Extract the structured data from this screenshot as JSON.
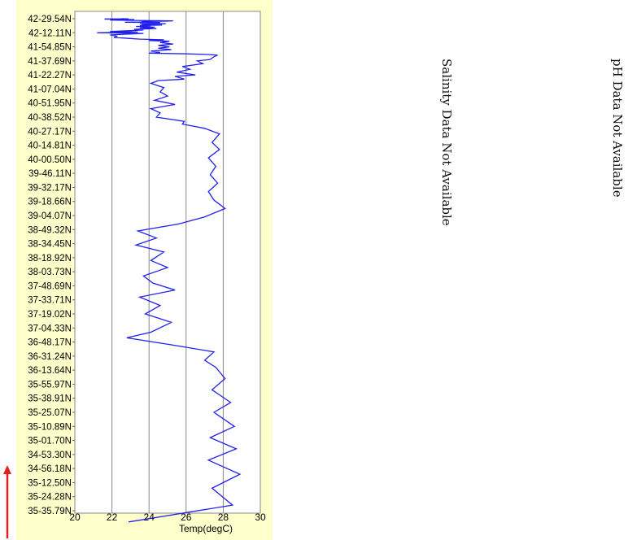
{
  "chart_data": {
    "type": "line",
    "orientation": "vertical-track",
    "xlabel": "Temp(degC)",
    "xlim": [
      20,
      30
    ],
    "xticks": [
      "20",
      "22",
      "24",
      "26",
      "28",
      "30"
    ],
    "y_tick_labels": [
      "42-29.54N",
      "42-12.11N",
      "41-54.85N",
      "41-37.69N",
      "41-22.27N",
      "41-07.04N",
      "40-51.95N",
      "40-38.52N",
      "40-27.17N",
      "40-14.81N",
      "40-00.50N",
      "39-46.11N",
      "39-32.17N",
      "39-18.66N",
      "39-04.07N",
      "38-49.32N",
      "38-34.45N",
      "38-18.92N",
      "38-03.73N",
      "37-48.69N",
      "37-33.71N",
      "37-19.02N",
      "37-04.33N",
      "36-48.17N",
      "36-31.24N",
      "36-13.64N",
      "35-55.97N",
      "35-38.91N",
      "35-25.07N",
      "35-10.89N",
      "35-01.70N",
      "34-53.30N",
      "34-56.18N",
      "35-12.50N",
      "35-24.28N",
      "35-35.79N"
    ],
    "series": [
      {
        "color": "#2020ee",
        "points": [
          [
            22.9,
            35.8
          ],
          [
            28.5,
            34.6
          ],
          [
            27.4,
            33.4
          ],
          [
            28.9,
            32.4
          ],
          [
            27.2,
            31.4
          ],
          [
            28.7,
            30.6
          ],
          [
            27.3,
            29.8
          ],
          [
            28.6,
            29.0
          ],
          [
            27.5,
            28.0
          ],
          [
            28.4,
            27.3
          ],
          [
            27.4,
            26.4
          ],
          [
            28.1,
            25.6
          ],
          [
            27.6,
            24.8
          ],
          [
            27.0,
            24.3
          ],
          [
            27.5,
            23.7
          ],
          [
            25.2,
            23.2
          ],
          [
            22.8,
            22.7
          ],
          [
            24.1,
            22.3
          ],
          [
            25.2,
            21.6
          ],
          [
            23.8,
            21.0
          ],
          [
            24.6,
            20.4
          ],
          [
            23.5,
            19.8
          ],
          [
            25.4,
            19.3
          ],
          [
            24.2,
            18.8
          ],
          [
            23.7,
            18.3
          ],
          [
            25.0,
            17.7
          ],
          [
            24.1,
            17.2
          ],
          [
            24.8,
            16.6
          ],
          [
            23.3,
            16.1
          ],
          [
            24.4,
            15.6
          ],
          [
            23.4,
            15.1
          ],
          [
            25.6,
            14.6
          ],
          [
            27.0,
            14.1
          ],
          [
            28.1,
            13.5
          ],
          [
            27.5,
            12.9
          ],
          [
            27.2,
            12.3
          ],
          [
            27.7,
            11.7
          ],
          [
            27.3,
            11.1
          ],
          [
            27.6,
            10.5
          ],
          [
            27.2,
            9.9
          ],
          [
            27.8,
            9.3
          ],
          [
            27.4,
            8.8
          ],
          [
            27.8,
            8.2
          ],
          [
            27.0,
            7.8
          ],
          [
            25.8,
            7.5
          ],
          [
            25.9,
            7.3
          ],
          [
            24.4,
            7.0
          ],
          [
            24.6,
            6.7
          ],
          [
            24.1,
            6.4
          ],
          [
            25.4,
            6.1
          ],
          [
            24.3,
            5.8
          ],
          [
            25.0,
            5.5
          ],
          [
            24.6,
            5.2
          ],
          [
            24.8,
            4.9
          ],
          [
            24.1,
            4.6
          ],
          [
            24.5,
            4.4
          ],
          [
            25.9,
            4.3
          ],
          [
            25.4,
            4.1
          ],
          [
            26.5,
            4.0
          ],
          [
            25.5,
            3.8
          ],
          [
            26.2,
            3.6
          ],
          [
            25.8,
            3.4
          ],
          [
            26.9,
            3.2
          ],
          [
            26.6,
            3.0
          ],
          [
            27.3,
            2.9
          ],
          [
            27.5,
            2.7
          ],
          [
            27.7,
            2.6
          ],
          [
            27.3,
            2.55
          ],
          [
            26.0,
            2.5
          ],
          [
            24.0,
            2.45
          ],
          [
            24.6,
            2.4
          ],
          [
            24.1,
            2.3
          ],
          [
            25.2,
            2.2
          ],
          [
            24.5,
            2.1
          ],
          [
            25.1,
            2.0
          ],
          [
            24.5,
            1.9
          ],
          [
            25.3,
            1.8
          ],
          [
            24.6,
            1.7
          ],
          [
            25.1,
            1.6
          ],
          [
            24.0,
            1.55
          ],
          [
            24.8,
            1.5
          ],
          [
            23.5,
            1.45
          ],
          [
            22.9,
            1.4
          ],
          [
            22.1,
            1.33
          ],
          [
            22.3,
            1.25
          ],
          [
            21.9,
            1.15
          ],
          [
            23.7,
            1.05
          ],
          [
            21.2,
            1.0
          ],
          [
            23.4,
            0.95
          ],
          [
            21.9,
            0.9
          ],
          [
            23.0,
            0.85
          ],
          [
            23.7,
            0.8
          ],
          [
            23.2,
            0.75
          ],
          [
            24.4,
            0.7
          ],
          [
            23.5,
            0.65
          ],
          [
            24.3,
            0.6
          ],
          [
            23.3,
            0.55
          ],
          [
            23.8,
            0.52
          ],
          [
            24.1,
            0.5
          ],
          [
            23.5,
            0.48
          ],
          [
            24.7,
            0.45
          ],
          [
            23.6,
            0.42
          ],
          [
            24.4,
            0.4
          ],
          [
            23.6,
            0.38
          ],
          [
            24.9,
            0.36
          ],
          [
            23.5,
            0.33
          ],
          [
            24.5,
            0.31
          ],
          [
            23.8,
            0.29
          ],
          [
            24.6,
            0.27
          ],
          [
            22.7,
            0.25
          ],
          [
            24.3,
            0.23
          ],
          [
            23.6,
            0.21
          ],
          [
            24.0,
            0.19
          ],
          [
            25.2,
            0.17
          ],
          [
            24.6,
            0.16
          ],
          [
            25.3,
            0.15
          ],
          [
            24.2,
            0.14
          ],
          [
            23.3,
            0.12
          ],
          [
            22.3,
            0.11
          ],
          [
            21.9,
            0.09
          ],
          [
            22.8,
            0.08
          ],
          [
            22.4,
            0.07
          ],
          [
            23.2,
            0.06
          ],
          [
            22.1,
            0.05
          ],
          [
            22.7,
            0.04
          ],
          [
            21.6,
            0.03
          ],
          [
            22.5,
            0.02
          ],
          [
            21.6,
            0.015
          ],
          [
            22.9,
            0.01
          ],
          [
            22.5,
            0.0
          ]
        ]
      }
    ]
  },
  "side_notes": {
    "salinity": "Salinity Data Not Available",
    "ph": "pH Data Not Available"
  },
  "colors": {
    "panel_background": "#ffffcc",
    "line": "#2020ee",
    "grid": "#888888",
    "arrow": "#e02020"
  }
}
